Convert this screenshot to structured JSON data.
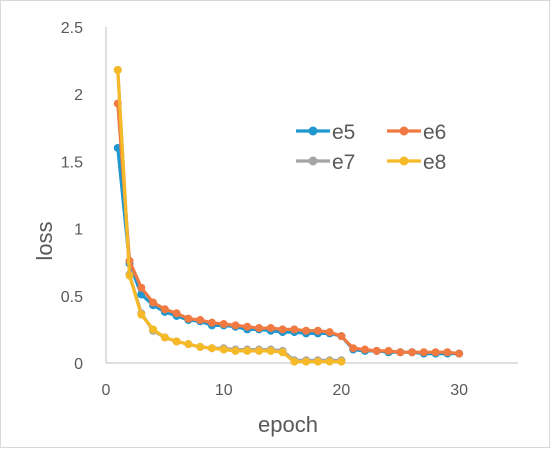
{
  "chart_data": {
    "type": "line",
    "xlabel": "epoch",
    "ylabel": "loss",
    "xlim": [
      0,
      35
    ],
    "ylim": [
      0,
      2.5
    ],
    "xticks": [
      0,
      10,
      20,
      30
    ],
    "yticks": [
      0,
      0.5,
      1,
      1.5,
      2,
      2.5
    ],
    "xtick_labels": [
      "0",
      "10",
      "20",
      "30"
    ],
    "ytick_labels": [
      "0",
      "0.5",
      "1",
      "1.5",
      "2",
      "2.5"
    ],
    "grid": false,
    "legend_position": "right",
    "series": [
      {
        "name": "e5",
        "color": "#1f97cf",
        "x": [
          1,
          2,
          3,
          4,
          5,
          6,
          7,
          8,
          9,
          10,
          11,
          12,
          13,
          14,
          15,
          16,
          17,
          18,
          19,
          20,
          21,
          22,
          23,
          24,
          25,
          26,
          27,
          28,
          29,
          30
        ],
        "y": [
          1.6,
          0.74,
          0.51,
          0.43,
          0.38,
          0.35,
          0.32,
          0.31,
          0.28,
          0.28,
          0.27,
          0.25,
          0.25,
          0.24,
          0.23,
          0.23,
          0.22,
          0.22,
          0.22,
          0.2,
          0.1,
          0.09,
          0.09,
          0.08,
          0.08,
          0.08,
          0.07,
          0.07,
          0.07,
          0.07
        ]
      },
      {
        "name": "e6",
        "color": "#f07a41",
        "x": [
          1,
          2,
          3,
          4,
          5,
          6,
          7,
          8,
          9,
          10,
          11,
          12,
          13,
          14,
          15,
          16,
          17,
          18,
          19,
          20,
          21,
          22,
          23,
          24,
          25,
          26,
          27,
          28,
          29,
          30
        ],
        "y": [
          1.93,
          0.76,
          0.56,
          0.45,
          0.4,
          0.37,
          0.33,
          0.32,
          0.3,
          0.29,
          0.28,
          0.27,
          0.26,
          0.26,
          0.25,
          0.25,
          0.24,
          0.24,
          0.23,
          0.2,
          0.11,
          0.1,
          0.09,
          0.09,
          0.08,
          0.08,
          0.08,
          0.08,
          0.08,
          0.07
        ]
      },
      {
        "name": "e7",
        "color": "#a5a5a5",
        "x": [
          1,
          2,
          3,
          4,
          5,
          6,
          7,
          8,
          9,
          10,
          11,
          12,
          13,
          14,
          15,
          16,
          17,
          18,
          19,
          20
        ],
        "y": [
          2.18,
          0.66,
          0.37,
          0.24,
          0.19,
          0.16,
          0.14,
          0.12,
          0.11,
          0.11,
          0.1,
          0.1,
          0.1,
          0.1,
          0.09,
          0.02,
          0.02,
          0.02,
          0.02,
          0.02
        ]
      },
      {
        "name": "e8",
        "color": "#f6b928",
        "x": [
          1,
          2,
          3,
          4,
          5,
          6,
          7,
          8,
          9,
          10,
          11,
          12,
          13,
          14,
          15,
          16,
          17,
          18,
          19,
          20
        ],
        "y": [
          2.18,
          0.65,
          0.36,
          0.25,
          0.19,
          0.16,
          0.14,
          0.12,
          0.11,
          0.1,
          0.09,
          0.09,
          0.09,
          0.09,
          0.08,
          0.01,
          0.01,
          0.01,
          0.01,
          0.01
        ]
      }
    ]
  }
}
